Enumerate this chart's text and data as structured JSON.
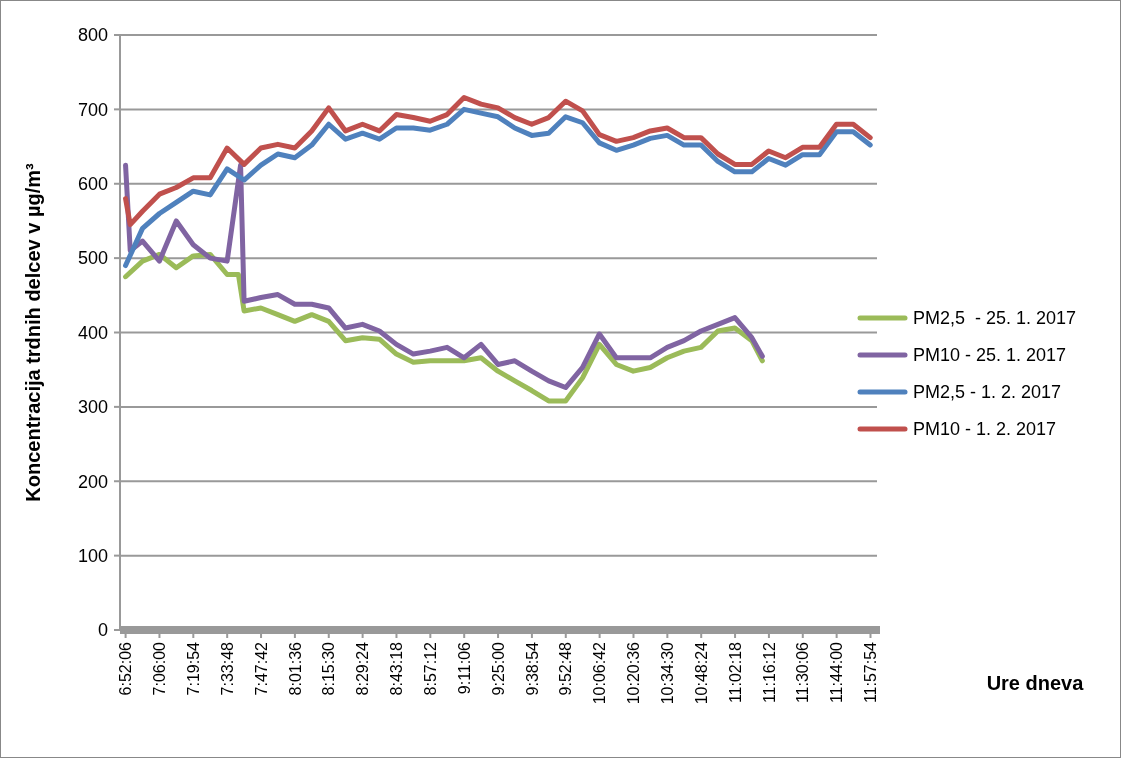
{
  "chart_data": {
    "type": "line",
    "ylabel": "Koncentracija trdnih delcev v µg/m³",
    "annotations": [
      "Ure dneva"
    ],
    "xlim": [
      6.83,
      12.03
    ],
    "xticks": [
      {
        "value": 6.868333,
        "label": "6:52:06"
      },
      {
        "value": 7.1,
        "label": "7:06:00"
      },
      {
        "value": 7.331667,
        "label": "7:19:54"
      },
      {
        "value": 7.563333,
        "label": "7:33:48"
      },
      {
        "value": 7.795,
        "label": "7:47:42"
      },
      {
        "value": 8.026667,
        "label": "8:01:36"
      },
      {
        "value": 8.258333,
        "label": "8:15:30"
      },
      {
        "value": 8.49,
        "label": "8:29:24"
      },
      {
        "value": 8.721667,
        "label": "8:43:18"
      },
      {
        "value": 8.953333,
        "label": "8:57:12"
      },
      {
        "value": 9.185,
        "label": "9:11:06"
      },
      {
        "value": 9.416667,
        "label": "9:25:00"
      },
      {
        "value": 9.648333,
        "label": "9:38:54"
      },
      {
        "value": 9.88,
        "label": "9:52:48"
      },
      {
        "value": 10.111667,
        "label": "10:06:42"
      },
      {
        "value": 10.343333,
        "label": "10:20:36"
      },
      {
        "value": 10.575,
        "label": "10:34:30"
      },
      {
        "value": 10.806667,
        "label": "10:48:24"
      },
      {
        "value": 11.038333,
        "label": "11:02:18"
      },
      {
        "value": 11.27,
        "label": "11:16:12"
      },
      {
        "value": 11.501667,
        "label": "11:30:06"
      },
      {
        "value": 11.733333,
        "label": "11:44:00"
      },
      {
        "value": 11.965,
        "label": "11:57:54"
      }
    ],
    "ylim": [
      0,
      800
    ],
    "yticks": [
      0,
      100,
      200,
      300,
      400,
      500,
      600,
      700,
      800
    ],
    "grid": "y",
    "legend": "right",
    "series": [
      {
        "name": "PM2,5  - 25. 1. 2017",
        "color": "#9bbb59",
        "x": [
          6.868,
          6.984,
          7.1,
          7.215,
          7.331,
          7.447,
          7.563,
          7.64,
          7.679,
          7.794,
          7.91,
          8.026,
          8.142,
          8.258,
          8.373,
          8.489,
          8.605,
          8.721,
          8.837,
          8.952,
          9.068,
          9.184,
          9.3,
          9.416,
          9.531,
          9.647,
          9.763,
          9.879,
          9.995,
          10.11,
          10.226,
          10.342,
          10.458,
          10.574,
          10.689,
          10.805,
          10.921,
          11.037,
          11.153,
          11.225
        ],
        "values": [
          475,
          496,
          505,
          487,
          503,
          505,
          478,
          478,
          429,
          433,
          424,
          415,
          424,
          415,
          389,
          393,
          391,
          371,
          360,
          362,
          362,
          362,
          366,
          348,
          335,
          322,
          308,
          308,
          339,
          384,
          357,
          348,
          353,
          366,
          375,
          380,
          402,
          406,
          389,
          362
        ]
      },
      {
        "name": "PM10 - 25. 1. 2017",
        "color": "#8064a2",
        "x": [
          6.868,
          6.9,
          6.984,
          7.1,
          7.215,
          7.331,
          7.447,
          7.563,
          7.655,
          7.679,
          7.794,
          7.91,
          8.026,
          8.142,
          8.258,
          8.373,
          8.489,
          8.605,
          8.721,
          8.837,
          8.952,
          9.068,
          9.184,
          9.3,
          9.416,
          9.531,
          9.647,
          9.763,
          9.879,
          9.995,
          10.11,
          10.226,
          10.342,
          10.458,
          10.574,
          10.689,
          10.805,
          10.921,
          11.037,
          11.153,
          11.225
        ],
        "values": [
          625,
          510,
          523,
          496,
          550,
          518,
          500,
          496,
          625,
          442,
          447,
          451,
          438,
          438,
          433,
          406,
          411,
          402,
          384,
          371,
          375,
          380,
          366,
          384,
          357,
          362,
          348,
          335,
          326,
          353,
          398,
          366,
          366,
          366,
          380,
          389,
          402,
          411,
          420,
          393,
          368
        ]
      },
      {
        "name": "PM2,5 - 1. 2. 2017",
        "color": "#4f81bd",
        "x": [
          6.868,
          6.984,
          7.1,
          7.215,
          7.331,
          7.447,
          7.563,
          7.679,
          7.794,
          7.91,
          8.026,
          8.142,
          8.258,
          8.373,
          8.489,
          8.605,
          8.721,
          8.837,
          8.952,
          9.068,
          9.184,
          9.3,
          9.416,
          9.531,
          9.647,
          9.763,
          9.879,
          9.995,
          10.11,
          10.226,
          10.342,
          10.458,
          10.574,
          10.689,
          10.805,
          10.921,
          11.037,
          11.153,
          11.268,
          11.384,
          11.5,
          11.616,
          11.732,
          11.847,
          11.963
        ],
        "values": [
          490,
          540,
          560,
          575,
          590,
          585,
          620,
          605,
          625,
          640,
          635,
          652,
          680,
          660,
          668,
          660,
          675,
          675,
          672,
          680,
          700,
          695,
          690,
          675,
          665,
          668,
          690,
          682,
          655,
          645,
          652,
          661,
          665,
          652,
          652,
          630,
          616,
          616,
          634,
          625,
          639,
          639,
          670,
          670,
          652
        ]
      },
      {
        "name": "PM10 - 1. 2. 2017",
        "color": "#c0504d",
        "x": [
          6.868,
          6.9,
          6.984,
          7.1,
          7.215,
          7.331,
          7.447,
          7.563,
          7.679,
          7.794,
          7.91,
          8.026,
          8.142,
          8.258,
          8.373,
          8.489,
          8.605,
          8.721,
          8.837,
          8.952,
          9.068,
          9.184,
          9.3,
          9.416,
          9.531,
          9.647,
          9.763,
          9.879,
          9.995,
          10.11,
          10.226,
          10.342,
          10.458,
          10.574,
          10.689,
          10.805,
          10.921,
          11.037,
          11.153,
          11.268,
          11.384,
          11.5,
          11.616,
          11.732,
          11.847,
          11.963
        ],
        "values": [
          580,
          545,
          563,
          586,
          595,
          608,
          608,
          648,
          626,
          648,
          653,
          648,
          671,
          702,
          671,
          680,
          671,
          693,
          689,
          684,
          693,
          716,
          707,
          702,
          689,
          680,
          689,
          711,
          698,
          666,
          657,
          662,
          671,
          675,
          662,
          662,
          640,
          626,
          626,
          644,
          635,
          649,
          649,
          680,
          680,
          662
        ]
      }
    ]
  }
}
